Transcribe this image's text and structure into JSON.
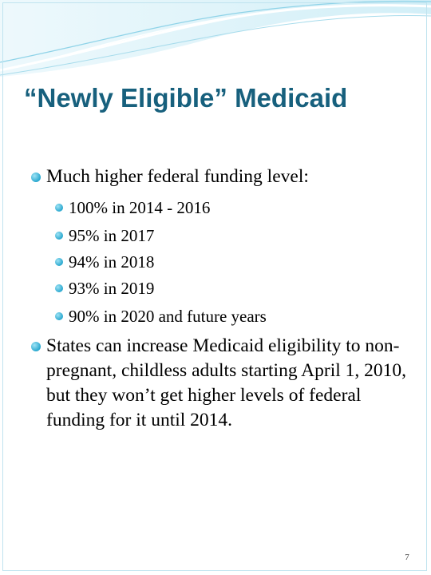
{
  "title": "“Newly Eligible” Medicaid",
  "bullets": [
    {
      "text": "Much higher federal funding level:",
      "sub_bullets": [
        "100% in 2014 - 2016",
        "95% in 2017",
        "94% in 2018",
        "93% in 2019",
        "90% in 2020 and future years"
      ]
    },
    {
      "text": "States can increase Medicaid eligibility to non-pregnant, childless adults starting April 1, 2010, but they won’t get higher levels of federal funding for it until 2014."
    }
  ],
  "page_number": "7"
}
